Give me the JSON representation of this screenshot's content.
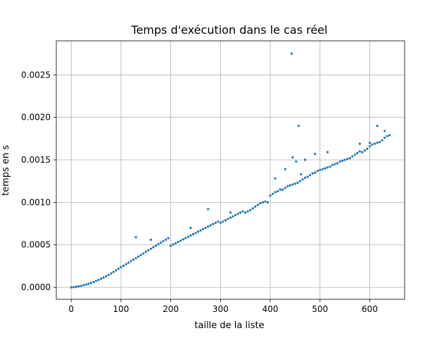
{
  "chart_data": {
    "type": "scatter",
    "title": "Temps d'exécution dans le cas réel",
    "xlabel": "taille de la liste",
    "ylabel": "temps en s",
    "xlim": [
      -30,
      670
    ],
    "ylim": [
      -0.00014,
      0.0029
    ],
    "x_ticks": [
      0,
      100,
      200,
      300,
      400,
      500,
      600
    ],
    "x_tick_labels": [
      "0",
      "100",
      "200",
      "300",
      "400",
      "500",
      "600"
    ],
    "y_ticks": [
      0.0,
      0.0005,
      0.001,
      0.0015,
      0.002,
      0.0025
    ],
    "y_tick_labels": [
      "0.0000",
      "0.0005",
      "0.0010",
      "0.0015",
      "0.0020",
      "0.0025"
    ],
    "grid": true,
    "marker_color": "#1f77b4",
    "series": [
      {
        "points": [
          [
            0,
            0.0
          ],
          [
            5,
            3e-06
          ],
          [
            10,
            7e-06
          ],
          [
            15,
            1.2e-05
          ],
          [
            20,
            1.8e-05
          ],
          [
            25,
            2.5e-05
          ],
          [
            30,
            3.3e-05
          ],
          [
            35,
            4.2e-05
          ],
          [
            40,
            5.2e-05
          ],
          [
            45,
            6.3e-05
          ],
          [
            50,
            7.5e-05
          ],
          [
            55,
            8.8e-05
          ],
          [
            60,
            0.000102
          ],
          [
            65,
            0.000116
          ],
          [
            70,
            0.000131
          ],
          [
            75,
            0.000147
          ],
          [
            80,
            0.000164
          ],
          [
            85,
            0.000181
          ],
          [
            90,
            0.000199
          ],
          [
            95,
            0.000218
          ],
          [
            100,
            0.000238
          ],
          [
            105,
            0.000255
          ],
          [
            110,
            0.000272
          ],
          [
            115,
            0.00029
          ],
          [
            120,
            0.000308
          ],
          [
            125,
            0.000326
          ],
          [
            130,
            0.000345
          ],
          [
            135,
            0.000363
          ],
          [
            140,
            0.000381
          ],
          [
            145,
            0.000399
          ],
          [
            150,
            0.000418
          ],
          [
            155,
            0.000436
          ],
          [
            160,
            0.000454
          ],
          [
            165,
            0.000472
          ],
          [
            170,
            0.00049
          ],
          [
            175,
            0.000508
          ],
          [
            180,
            0.000526
          ],
          [
            185,
            0.000543
          ],
          [
            190,
            0.000561
          ],
          [
            195,
            0.000578
          ],
          [
            200,
            0.00049
          ],
          [
            205,
            0.000505
          ],
          [
            210,
            0.00052
          ],
          [
            215,
            0.000535
          ],
          [
            220,
            0.00055
          ],
          [
            225,
            0.000565
          ],
          [
            230,
            0.00058
          ],
          [
            235,
            0.000595
          ],
          [
            240,
            0.00061
          ],
          [
            245,
            0.000625
          ],
          [
            250,
            0.00064
          ],
          [
            255,
            0.000655
          ],
          [
            260,
            0.00067
          ],
          [
            265,
            0.000685
          ],
          [
            270,
            0.0007
          ],
          [
            275,
            0.000715
          ],
          [
            280,
            0.00073
          ],
          [
            285,
            0.000745
          ],
          [
            290,
            0.00076
          ],
          [
            295,
            0.000775
          ],
          [
            300,
            0.00076
          ],
          [
            305,
            0.000775
          ],
          [
            310,
            0.00079
          ],
          [
            315,
            0.000805
          ],
          [
            320,
            0.00082
          ],
          [
            325,
            0.000835
          ],
          [
            330,
            0.00085
          ],
          [
            335,
            0.000865
          ],
          [
            340,
            0.00088
          ],
          [
            345,
            0.000895
          ],
          [
            350,
            0.00088
          ],
          [
            355,
            0.000895
          ],
          [
            360,
            0.00091
          ],
          [
            365,
            0.00093
          ],
          [
            370,
            0.00095
          ],
          [
            375,
            0.00097
          ],
          [
            380,
            0.00099
          ],
          [
            385,
            0.001
          ],
          [
            390,
            0.00101
          ],
          [
            395,
            0.001
          ],
          [
            400,
            0.00108
          ],
          [
            405,
            0.0011
          ],
          [
            410,
            0.00112
          ],
          [
            415,
            0.00113
          ],
          [
            420,
            0.00115
          ],
          [
            425,
            0.00115
          ],
          [
            430,
            0.00117
          ],
          [
            435,
            0.00119
          ],
          [
            440,
            0.0012
          ],
          [
            445,
            0.00121
          ],
          [
            450,
            0.00122
          ],
          [
            455,
            0.00123
          ],
          [
            460,
            0.00125
          ],
          [
            465,
            0.00127
          ],
          [
            470,
            0.00129
          ],
          [
            475,
            0.0013
          ],
          [
            480,
            0.00132
          ],
          [
            485,
            0.00134
          ],
          [
            490,
            0.00135
          ],
          [
            495,
            0.00137
          ],
          [
            500,
            0.00138
          ],
          [
            505,
            0.00139
          ],
          [
            510,
            0.0014
          ],
          [
            515,
            0.00141
          ],
          [
            520,
            0.00142
          ],
          [
            525,
            0.00144
          ],
          [
            530,
            0.00145
          ],
          [
            535,
            0.00146
          ],
          [
            540,
            0.00148
          ],
          [
            545,
            0.00149
          ],
          [
            550,
            0.0015
          ],
          [
            555,
            0.00151
          ],
          [
            560,
            0.00152
          ],
          [
            565,
            0.00154
          ],
          [
            570,
            0.00156
          ],
          [
            575,
            0.00158
          ],
          [
            580,
            0.0016
          ],
          [
            585,
            0.00159
          ],
          [
            590,
            0.00161
          ],
          [
            595,
            0.00163
          ],
          [
            600,
            0.00166
          ],
          [
            605,
            0.00168
          ],
          [
            610,
            0.00169
          ],
          [
            615,
            0.0017
          ],
          [
            620,
            0.00171
          ],
          [
            625,
            0.00173
          ],
          [
            630,
            0.00176
          ],
          [
            635,
            0.00178
          ],
          [
            640,
            0.00179
          ],
          [
            130,
            0.00059
          ],
          [
            160,
            0.00056
          ],
          [
            240,
            0.0007
          ],
          [
            275,
            0.00092
          ],
          [
            320,
            0.00088
          ],
          [
            410,
            0.00128
          ],
          [
            420,
            0.00115
          ],
          [
            430,
            0.00139
          ],
          [
            443,
            0.00275
          ],
          [
            445,
            0.00153
          ],
          [
            452,
            0.00148
          ],
          [
            457,
            0.0019
          ],
          [
            462,
            0.00133
          ],
          [
            470,
            0.0015
          ],
          [
            490,
            0.00157
          ],
          [
            515,
            0.00159
          ],
          [
            580,
            0.00169
          ],
          [
            600,
            0.0017
          ],
          [
            615,
            0.0019
          ],
          [
            630,
            0.00184
          ]
        ]
      }
    ]
  }
}
